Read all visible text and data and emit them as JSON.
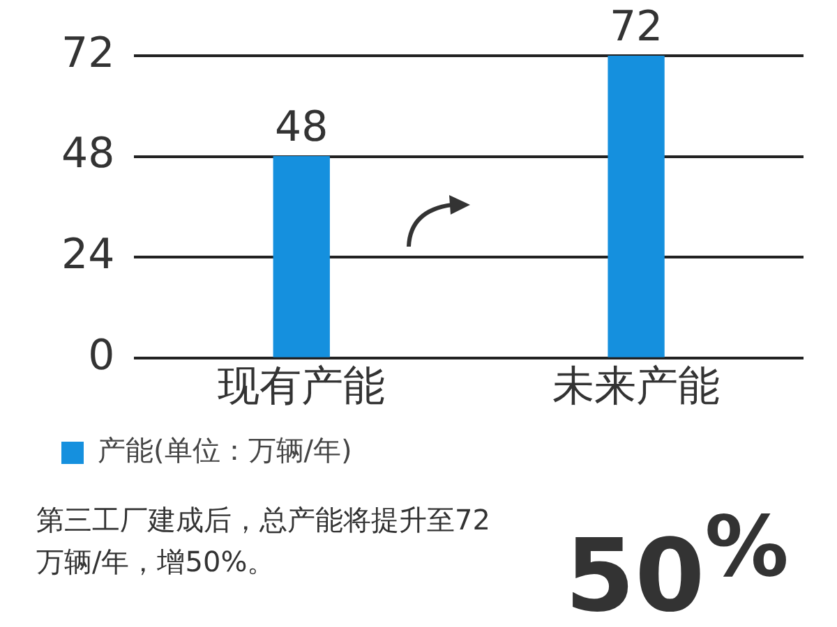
{
  "chart_data": {
    "type": "bar",
    "categories": [
      "现有产能",
      "未来产能"
    ],
    "series": [
      {
        "name": "产能(单位：万辆/年)",
        "color": "#1590de",
        "values": [
          48,
          72
        ]
      }
    ],
    "ylim": [
      0,
      72
    ],
    "yticks": [
      0,
      24,
      48,
      72
    ],
    "grid": "y",
    "legend": "bottom left",
    "data_labels": true,
    "annotations": [
      "第三工厂建成后，总产能将提升至72万辆/年，增50%。",
      "50$^{%}$"
    ]
  }
}
